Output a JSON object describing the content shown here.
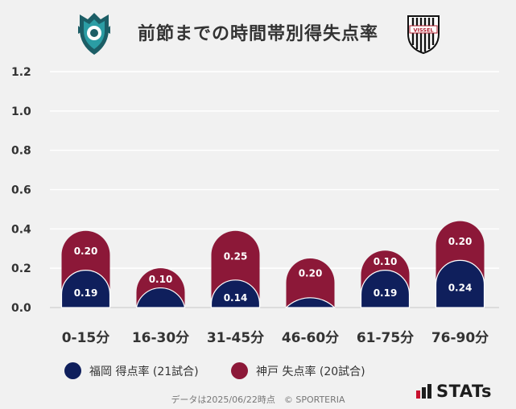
{
  "header": {
    "title": "前節までの時間帯別得失点率",
    "away_logo_text": "VISSEL"
  },
  "colors": {
    "fukuoka": "#0f1f5c",
    "kobe": "#8c1838",
    "grid": "#ffffff",
    "background": "#f1f1f1"
  },
  "chart_data": {
    "type": "bar",
    "stacked": true,
    "title": "前節までの時間帯別得失点率",
    "categories": [
      "0-15分",
      "16-30分",
      "31-45分",
      "46-60分",
      "61-75分",
      "76-90分"
    ],
    "series": [
      {
        "name": "福岡 得点率 (21試合)",
        "color": "#0f1f5c",
        "values": [
          0.19,
          0.1,
          0.14,
          0.05,
          0.19,
          0.24
        ],
        "labels": [
          "0.19",
          "",
          "0.14",
          "",
          "0.19",
          "0.24"
        ]
      },
      {
        "name": "神戸 失点率 (20試合)",
        "color": "#8c1838",
        "values": [
          0.2,
          0.1,
          0.25,
          0.2,
          0.1,
          0.2
        ],
        "labels": [
          "0.20",
          "0.10",
          "0.25",
          "0.20",
          "0.10",
          "0.20"
        ]
      }
    ],
    "y_ticks": [
      "0.0",
      "0.2",
      "0.4",
      "0.6",
      "0.8",
      "1.0",
      "1.2"
    ],
    "ylim": [
      0,
      1.2
    ],
    "grid": true,
    "xlabel": "",
    "ylabel": ""
  },
  "legend": {
    "fukuoka_label": "福岡 得点率 (21試合)",
    "kobe_label": "神戸 失点率 (20試合)"
  },
  "footer": {
    "note": "データは2025/06/22時点　© SPORTERIA",
    "brand": "STATs"
  }
}
